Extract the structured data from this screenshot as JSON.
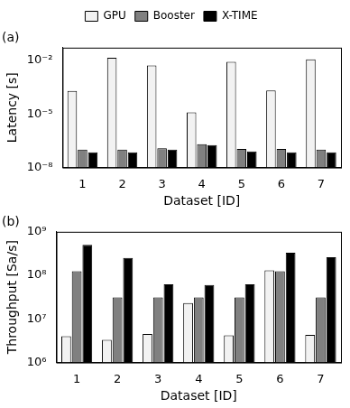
{
  "chart_data": [
    {
      "type": "bar",
      "title": "(a)",
      "log": "y",
      "grid": false,
      "legend": "top",
      "x_label": "Dataset [ID]",
      "y_label": "Latency [s]",
      "categories": [
        "1",
        "2",
        "3",
        "4",
        "5",
        "6",
        "7"
      ],
      "ylim": [
        1e-08,
        0.05
      ],
      "yticks": [
        {
          "value": 1e-08,
          "label": "10⁻⁸"
        },
        {
          "value": 1e-05,
          "label": "10⁻⁵"
        },
        {
          "value": 0.01,
          "label": "10⁻²"
        }
      ],
      "series": [
        {
          "name": "GPU",
          "color": "#f2f2f2",
          "values": [
            0.00019,
            0.0136,
            0.005,
            1.2e-05,
            0.008,
            0.0002,
            0.011
          ]
        },
        {
          "name": "Booster",
          "color": "#808080",
          "values": [
            1e-07,
            1e-07,
            1.2e-07,
            2e-07,
            1.1e-07,
            1.1e-07,
            1e-07
          ]
        },
        {
          "name": "X-TIME",
          "color": "#000000",
          "values": [
            7e-08,
            7e-08,
            1e-07,
            1.8e-07,
            8e-08,
            7e-08,
            7e-08
          ]
        }
      ]
    },
    {
      "type": "bar",
      "title": "(b)",
      "log": "y",
      "grid": false,
      "x_label": "Dataset [ID]",
      "y_label": "Throughput [Sa/s]",
      "categories": [
        "1",
        "2",
        "3",
        "4",
        "5",
        "6",
        "7"
      ],
      "ylim": [
        1000000,
        1000000000
      ],
      "yticks": [
        {
          "value": 1000000,
          "label": "10⁶"
        },
        {
          "value": 10000000,
          "label": "10⁷"
        },
        {
          "value": 100000000,
          "label": "10⁸"
        },
        {
          "value": 1000000000,
          "label": "10⁹"
        }
      ],
      "series": [
        {
          "name": "GPU",
          "color": "#f2f2f2",
          "values": [
            4000000,
            3300000,
            4500000,
            23000000,
            4200000,
            130000000,
            4300000
          ]
        },
        {
          "name": "Booster",
          "color": "#808080",
          "values": [
            125000000,
            31000000,
            31000000,
            31000000,
            31000000,
            125000000,
            31000000
          ]
        },
        {
          "name": "X-TIME",
          "color": "#000000",
          "values": [
            500000000,
            250000000,
            62000000,
            60000000,
            62000000,
            330000000,
            260000000
          ]
        }
      ]
    }
  ]
}
